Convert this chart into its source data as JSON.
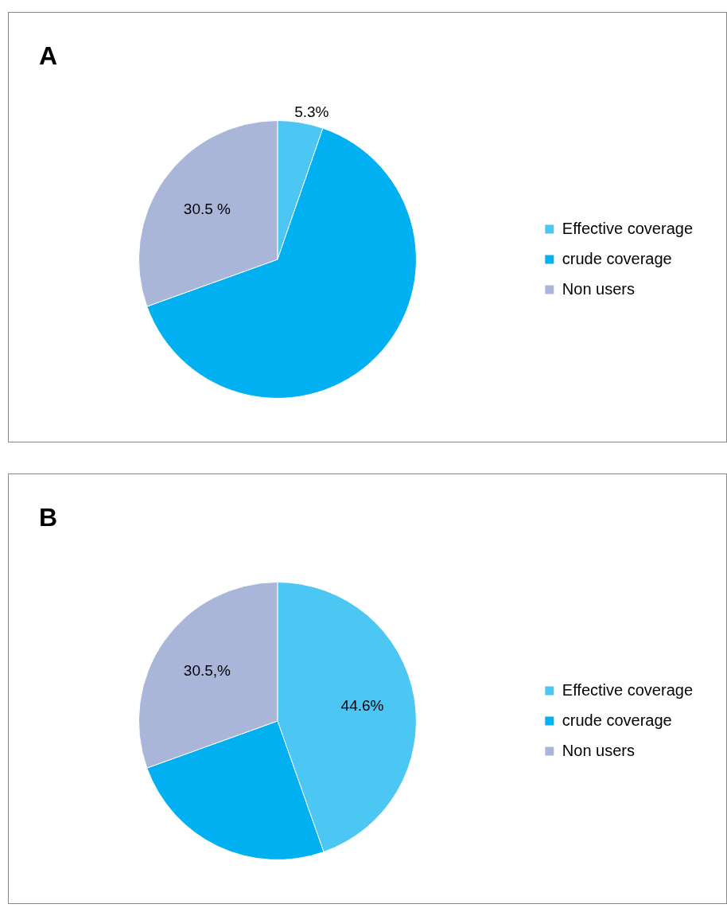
{
  "chart_data": [
    {
      "type": "pie",
      "title": "A",
      "categories": [
        "Effective coverage",
        "crude coverage",
        "Non users"
      ],
      "values": [
        5.3,
        64.2,
        30.5
      ],
      "colors": [
        "#4cc6f3",
        "#00b0f0",
        "#a9b6d9"
      ],
      "value_labels": [
        "5.3%",
        null,
        "30.5 %"
      ],
      "legend": "right"
    },
    {
      "type": "pie",
      "title": "B",
      "categories": [
        "Effective coverage",
        "crude coverage",
        "Non users"
      ],
      "values": [
        44.6,
        24.9,
        30.5
      ],
      "colors": [
        "#4cc6f3",
        "#00b0f0",
        "#a9b6d9"
      ],
      "value_labels": [
        "44.6%",
        null,
        "30.5,%"
      ],
      "legend": "right"
    }
  ]
}
